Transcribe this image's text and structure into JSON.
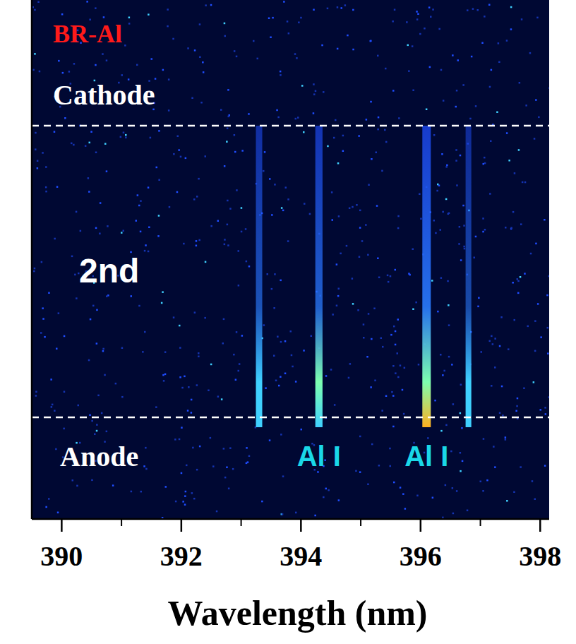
{
  "chart_data": {
    "type": "spectral_image",
    "title": "BR-Al",
    "x_label": "Wavelength (nm)",
    "xlim": [
      389.5,
      398.15
    ],
    "xticks": [
      390,
      392,
      394,
      396,
      398
    ],
    "minor_xticks": [
      391,
      393,
      395,
      397
    ],
    "region_label": "2nd",
    "boundaries": [
      {
        "label": "Cathode"
      },
      {
        "label": "Anode"
      }
    ],
    "x": [
      393.3,
      394.3,
      396.1,
      396.8
    ],
    "values": [
      0.5,
      0.7,
      1.0,
      0.35
    ],
    "annotations": [
      {
        "text": "Al I",
        "x": 394.3
      },
      {
        "text": "Al I",
        "x": 396.1
      }
    ]
  }
}
